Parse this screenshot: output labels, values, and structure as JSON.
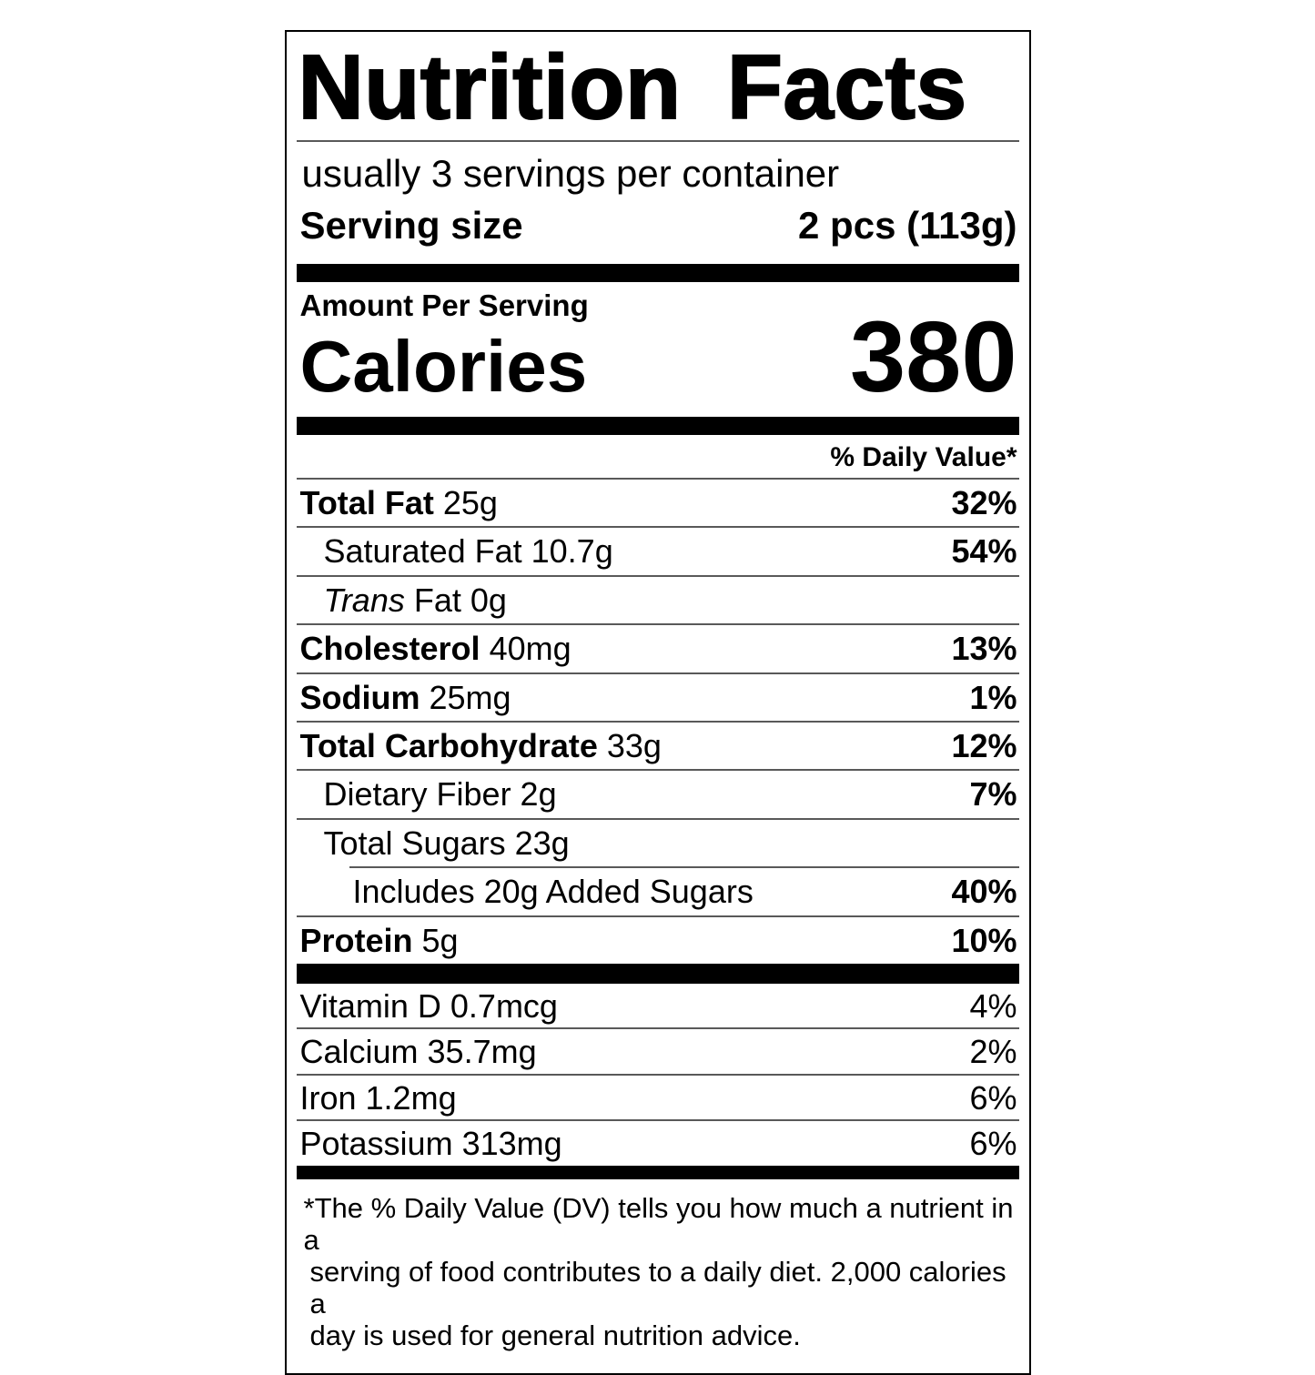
{
  "colors": {
    "text": "#000000",
    "background": "#ffffff",
    "hairline": "#595959",
    "bar": "#000000"
  },
  "label": {
    "title": "Nutrition Facts",
    "servings_per_container": "usually 3 servings per container",
    "serving_size": {
      "label": "Serving size",
      "value": "2 pcs (113g)"
    },
    "amount_per_serving": "Amount Per Serving",
    "calories": {
      "label": "Calories",
      "value": "380"
    },
    "daily_value_header": "% Daily Value*",
    "nutrients": [
      {
        "name_bold": "Total Fat",
        "name_rest": "25g",
        "daily_value": "32%"
      },
      {
        "name_rest": "Saturated Fat 10.7g",
        "daily_value": "54%"
      },
      {
        "name_italic": "Trans",
        "name_rest": "Fat 0g",
        "daily_value": ""
      },
      {
        "name_bold": "Cholesterol",
        "name_rest": "40mg",
        "daily_value": "13%"
      },
      {
        "name_bold": "Sodium",
        "name_rest": "25mg",
        "daily_value": "1%"
      },
      {
        "name_bold": "Total Carbohydrate",
        "name_rest": "33g",
        "daily_value": "12%"
      },
      {
        "name_rest": "Dietary Fiber 2g",
        "daily_value": "7%"
      },
      {
        "name_rest": "Total Sugars 23g",
        "daily_value": ""
      },
      {
        "name_rest": "Includes 20g Added Sugars",
        "daily_value": "40%"
      },
      {
        "name_bold": "Protein",
        "name_rest": "5g",
        "daily_value": "10%"
      }
    ],
    "micronutrients": [
      {
        "name": "Vitamin D 0.7mcg",
        "daily_value": "4%"
      },
      {
        "name": "Calcium 35.7mg",
        "daily_value": "2%"
      },
      {
        "name": "Iron 1.2mg",
        "daily_value": "6%"
      },
      {
        "name": "Potassium 313mg",
        "daily_value": "6%"
      }
    ],
    "footnote": {
      "asterisk": "*",
      "lines": [
        "The % Daily Value (DV) tells you how much a nutrient in a",
        "serving of food contributes to a daily diet. 2,000 calories a",
        "day is used for general nutrition advice."
      ]
    }
  }
}
